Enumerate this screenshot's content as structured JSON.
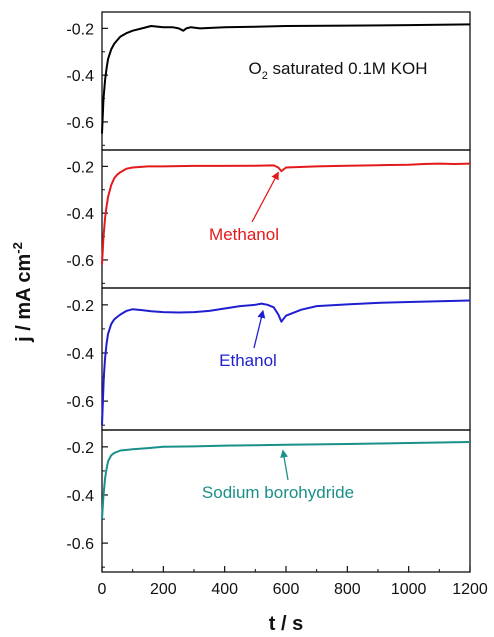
{
  "chart_data": {
    "type": "line",
    "xlabel": "t / s",
    "ylabel": "j / mA cm",
    "ylabel_sup": "-2",
    "x_ticks": [
      "0",
      "200",
      "400",
      "600",
      "800",
      "1000",
      "1200"
    ],
    "xlim": [
      0,
      1200
    ],
    "panels": [
      {
        "name": "O2 saturated 0.1M KOH",
        "label_pre": "O",
        "label_sub": "2",
        "label_post": " saturated 0.1M KOH",
        "color": "#000000",
        "ylim": [
          -0.72,
          -0.13
        ],
        "y_ticks": [
          "-0.2",
          "-0.4",
          "-0.6"
        ],
        "arrow": false,
        "x": [
          0,
          5,
          10,
          15,
          20,
          30,
          40,
          50,
          60,
          80,
          100,
          130,
          160,
          200,
          230,
          250,
          265,
          275,
          290,
          320,
          400,
          500,
          600,
          800,
          1000,
          1200
        ],
        "y": [
          -0.65,
          -0.5,
          -0.42,
          -0.37,
          -0.33,
          -0.29,
          -0.265,
          -0.25,
          -0.235,
          -0.22,
          -0.21,
          -0.2,
          -0.19,
          -0.195,
          -0.195,
          -0.2,
          -0.21,
          -0.2,
          -0.195,
          -0.2,
          -0.195,
          -0.193,
          -0.19,
          -0.188,
          -0.186,
          -0.183
        ]
      },
      {
        "name": "Methanol",
        "label": "Methanol",
        "color": "#e31a1c",
        "ylim": [
          -0.72,
          -0.13
        ],
        "y_ticks": [
          "-0.2",
          "-0.4",
          "-0.6"
        ],
        "arrow": true,
        "arrow_to": [
          575,
          -0.2
        ],
        "x": [
          0,
          5,
          10,
          15,
          20,
          30,
          40,
          50,
          60,
          80,
          100,
          150,
          200,
          300,
          400,
          500,
          560,
          575,
          585,
          600,
          700,
          800,
          900,
          1000,
          1050,
          1100,
          1150,
          1200
        ],
        "y": [
          -0.62,
          -0.5,
          -0.42,
          -0.37,
          -0.33,
          -0.28,
          -0.25,
          -0.235,
          -0.225,
          -0.21,
          -0.205,
          -0.2,
          -0.2,
          -0.198,
          -0.198,
          -0.197,
          -0.196,
          -0.205,
          -0.22,
          -0.205,
          -0.2,
          -0.197,
          -0.195,
          -0.193,
          -0.19,
          -0.188,
          -0.19,
          -0.188
        ]
      },
      {
        "name": "Ethanol",
        "label": "Ethanol",
        "color": "#1f1fd0",
        "ylim": [
          -0.72,
          -0.13
        ],
        "y_ticks": [
          "-0.2",
          "-0.4",
          "-0.6"
        ],
        "arrow": true,
        "arrow_to": [
          525,
          -0.2
        ],
        "x": [
          0,
          3,
          6,
          10,
          15,
          20,
          30,
          40,
          50,
          60,
          80,
          100,
          130,
          160,
          200,
          250,
          300,
          350,
          400,
          450,
          500,
          520,
          540,
          560,
          575,
          585,
          600,
          650,
          700,
          800,
          900,
          1000,
          1100,
          1200
        ],
        "y": [
          -0.7,
          -0.6,
          -0.5,
          -0.42,
          -0.36,
          -0.32,
          -0.28,
          -0.26,
          -0.25,
          -0.24,
          -0.225,
          -0.218,
          -0.222,
          -0.227,
          -0.23,
          -0.232,
          -0.23,
          -0.225,
          -0.215,
          -0.205,
          -0.2,
          -0.195,
          -0.2,
          -0.21,
          -0.24,
          -0.27,
          -0.245,
          -0.22,
          -0.205,
          -0.198,
          -0.192,
          -0.188,
          -0.185,
          -0.182
        ]
      },
      {
        "name": "Sodium borohydride",
        "label": "Sodium borohydride",
        "color": "#1b8f8a",
        "ylim": [
          -0.72,
          -0.13
        ],
        "y_ticks": [
          "-0.2",
          "-0.4",
          "-0.6"
        ],
        "arrow": true,
        "arrow_to": [
          590,
          -0.19
        ],
        "x": [
          0,
          5,
          10,
          15,
          20,
          30,
          40,
          60,
          100,
          150,
          200,
          300,
          400,
          500,
          600,
          700,
          800,
          900,
          1000,
          1100,
          1200
        ],
        "y": [
          -0.5,
          -0.4,
          -0.33,
          -0.29,
          -0.26,
          -0.235,
          -0.225,
          -0.215,
          -0.21,
          -0.205,
          -0.2,
          -0.198,
          -0.195,
          -0.193,
          -0.191,
          -0.19,
          -0.188,
          -0.186,
          -0.184,
          -0.182,
          -0.18
        ]
      }
    ]
  }
}
